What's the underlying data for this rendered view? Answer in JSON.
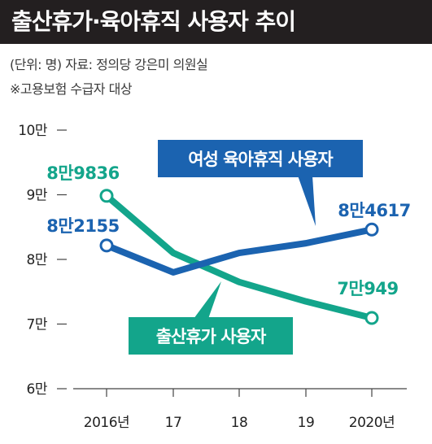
{
  "header": {
    "title": "출산휴가·육아휴직 사용자 추이",
    "source": "(단위: 명) 자료: 정의당 강은미 의원실",
    "note": "※고용보험 수급자 대상"
  },
  "colors": {
    "title_bg": "#231f20",
    "parental_leave": "#1b63b0",
    "maternity_leave": "#13a58b",
    "axis": "#444444"
  },
  "chart_data": {
    "type": "line",
    "x": [
      "2016년",
      "17",
      "18",
      "19",
      "2020년"
    ],
    "ylim": [
      60000,
      100000
    ],
    "y_ticks": [
      {
        "value": 100000,
        "label": "10만"
      },
      {
        "value": 90000,
        "label": "9만"
      },
      {
        "value": 80000,
        "label": "8만"
      },
      {
        "value": 70000,
        "label": "7만"
      },
      {
        "value": 60000,
        "label": "6만"
      }
    ],
    "series": [
      {
        "name": "여성 육아휴직 사용자",
        "color_key": "parental_leave",
        "values": [
          82155,
          78000,
          81000,
          82500,
          84617
        ],
        "labels": [
          {
            "index": 0,
            "text": "8만2155"
          },
          {
            "index": 4,
            "text": "8만4617"
          }
        ]
      },
      {
        "name": "출산휴가 사용자",
        "color_key": "maternity_leave",
        "values": [
          89836,
          81000,
          76500,
          73500,
          70949
        ],
        "labels": [
          {
            "index": 0,
            "text": "8만9836"
          },
          {
            "index": 4,
            "text": "7만949"
          }
        ]
      }
    ]
  }
}
